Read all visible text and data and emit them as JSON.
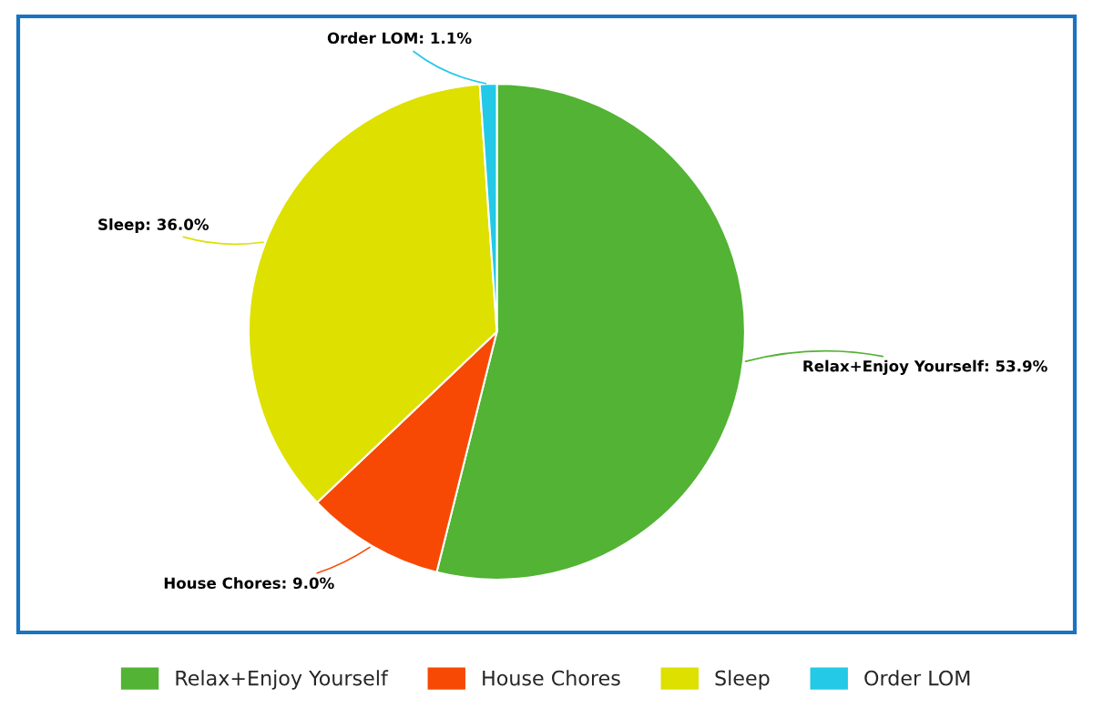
{
  "chart_data": {
    "type": "pie",
    "categories": [
      "Relax+Enjoy Yourself",
      "House Chores",
      "Sleep",
      "Order LOM"
    ],
    "values": [
      53.9,
      9.0,
      36.0,
      1.1
    ],
    "colors": [
      "#52b334",
      "#f74903",
      "#dee000",
      "#23c9e6"
    ],
    "value_labels": [
      "Relax+Enjoy Yourself: 53.9%",
      "House Chores: 9.0%",
      "Sleep: 36.0%",
      "Order LOM: 1.1%"
    ],
    "legend": "bottom"
  }
}
